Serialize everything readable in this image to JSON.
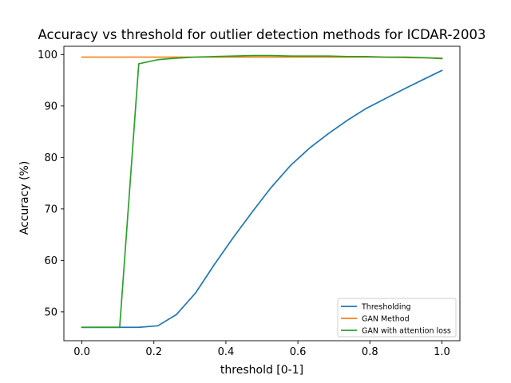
{
  "chart_data": {
    "type": "line",
    "title": "Accuracy vs threshold for outlier detection methods for ICDAR-2003",
    "xlabel": "threshold [0-1]",
    "ylabel": "Accuracy (%)",
    "xlim": [
      -0.05,
      1.05
    ],
    "ylim": [
      44.4,
      101.6
    ],
    "xticks": [
      0.0,
      0.2,
      0.4,
      0.6,
      0.8,
      1.0
    ],
    "xtick_labels": [
      "0.0",
      "0.2",
      "0.4",
      "0.6",
      "0.8",
      "1.0"
    ],
    "yticks": [
      50,
      60,
      70,
      80,
      90,
      100
    ],
    "ytick_labels": [
      "50",
      "60",
      "70",
      "80",
      "90",
      "100"
    ],
    "grid": false,
    "legend_position": "lower-right",
    "series": [
      {
        "name": "Thresholding",
        "color": "#1f77b4",
        "x": [
          0.0,
          0.053,
          0.105,
          0.158,
          0.211,
          0.263,
          0.316,
          0.368,
          0.421,
          0.474,
          0.526,
          0.579,
          0.632,
          0.684,
          0.737,
          0.789,
          0.842,
          0.895,
          0.947,
          1.0
        ],
        "y": [
          47.0,
          47.0,
          47.0,
          47.0,
          47.3,
          49.5,
          53.7,
          59.2,
          64.5,
          69.5,
          74.2,
          78.4,
          81.8,
          84.6,
          87.2,
          89.5,
          91.4,
          93.3,
          95.1,
          96.9
        ]
      },
      {
        "name": "GAN Method",
        "color": "#ff7f0e",
        "x": [
          0.0,
          0.2,
          0.4,
          0.6,
          0.8,
          1.0
        ],
        "y": [
          99.5,
          99.5,
          99.5,
          99.5,
          99.5,
          99.3
        ]
      },
      {
        "name": "GAN with attention loss",
        "color": "#2ca02c",
        "x": [
          0.0,
          0.053,
          0.105,
          0.158,
          0.211,
          0.263,
          0.316,
          0.368,
          0.421,
          0.474,
          0.526,
          0.579,
          0.632,
          0.684,
          0.737,
          0.789,
          0.842,
          0.895,
          0.947,
          1.0
        ],
        "y": [
          47.0,
          47.0,
          47.0,
          98.2,
          99.0,
          99.3,
          99.5,
          99.6,
          99.7,
          99.8,
          99.8,
          99.7,
          99.7,
          99.7,
          99.6,
          99.6,
          99.5,
          99.5,
          99.4,
          99.2
        ]
      }
    ]
  }
}
